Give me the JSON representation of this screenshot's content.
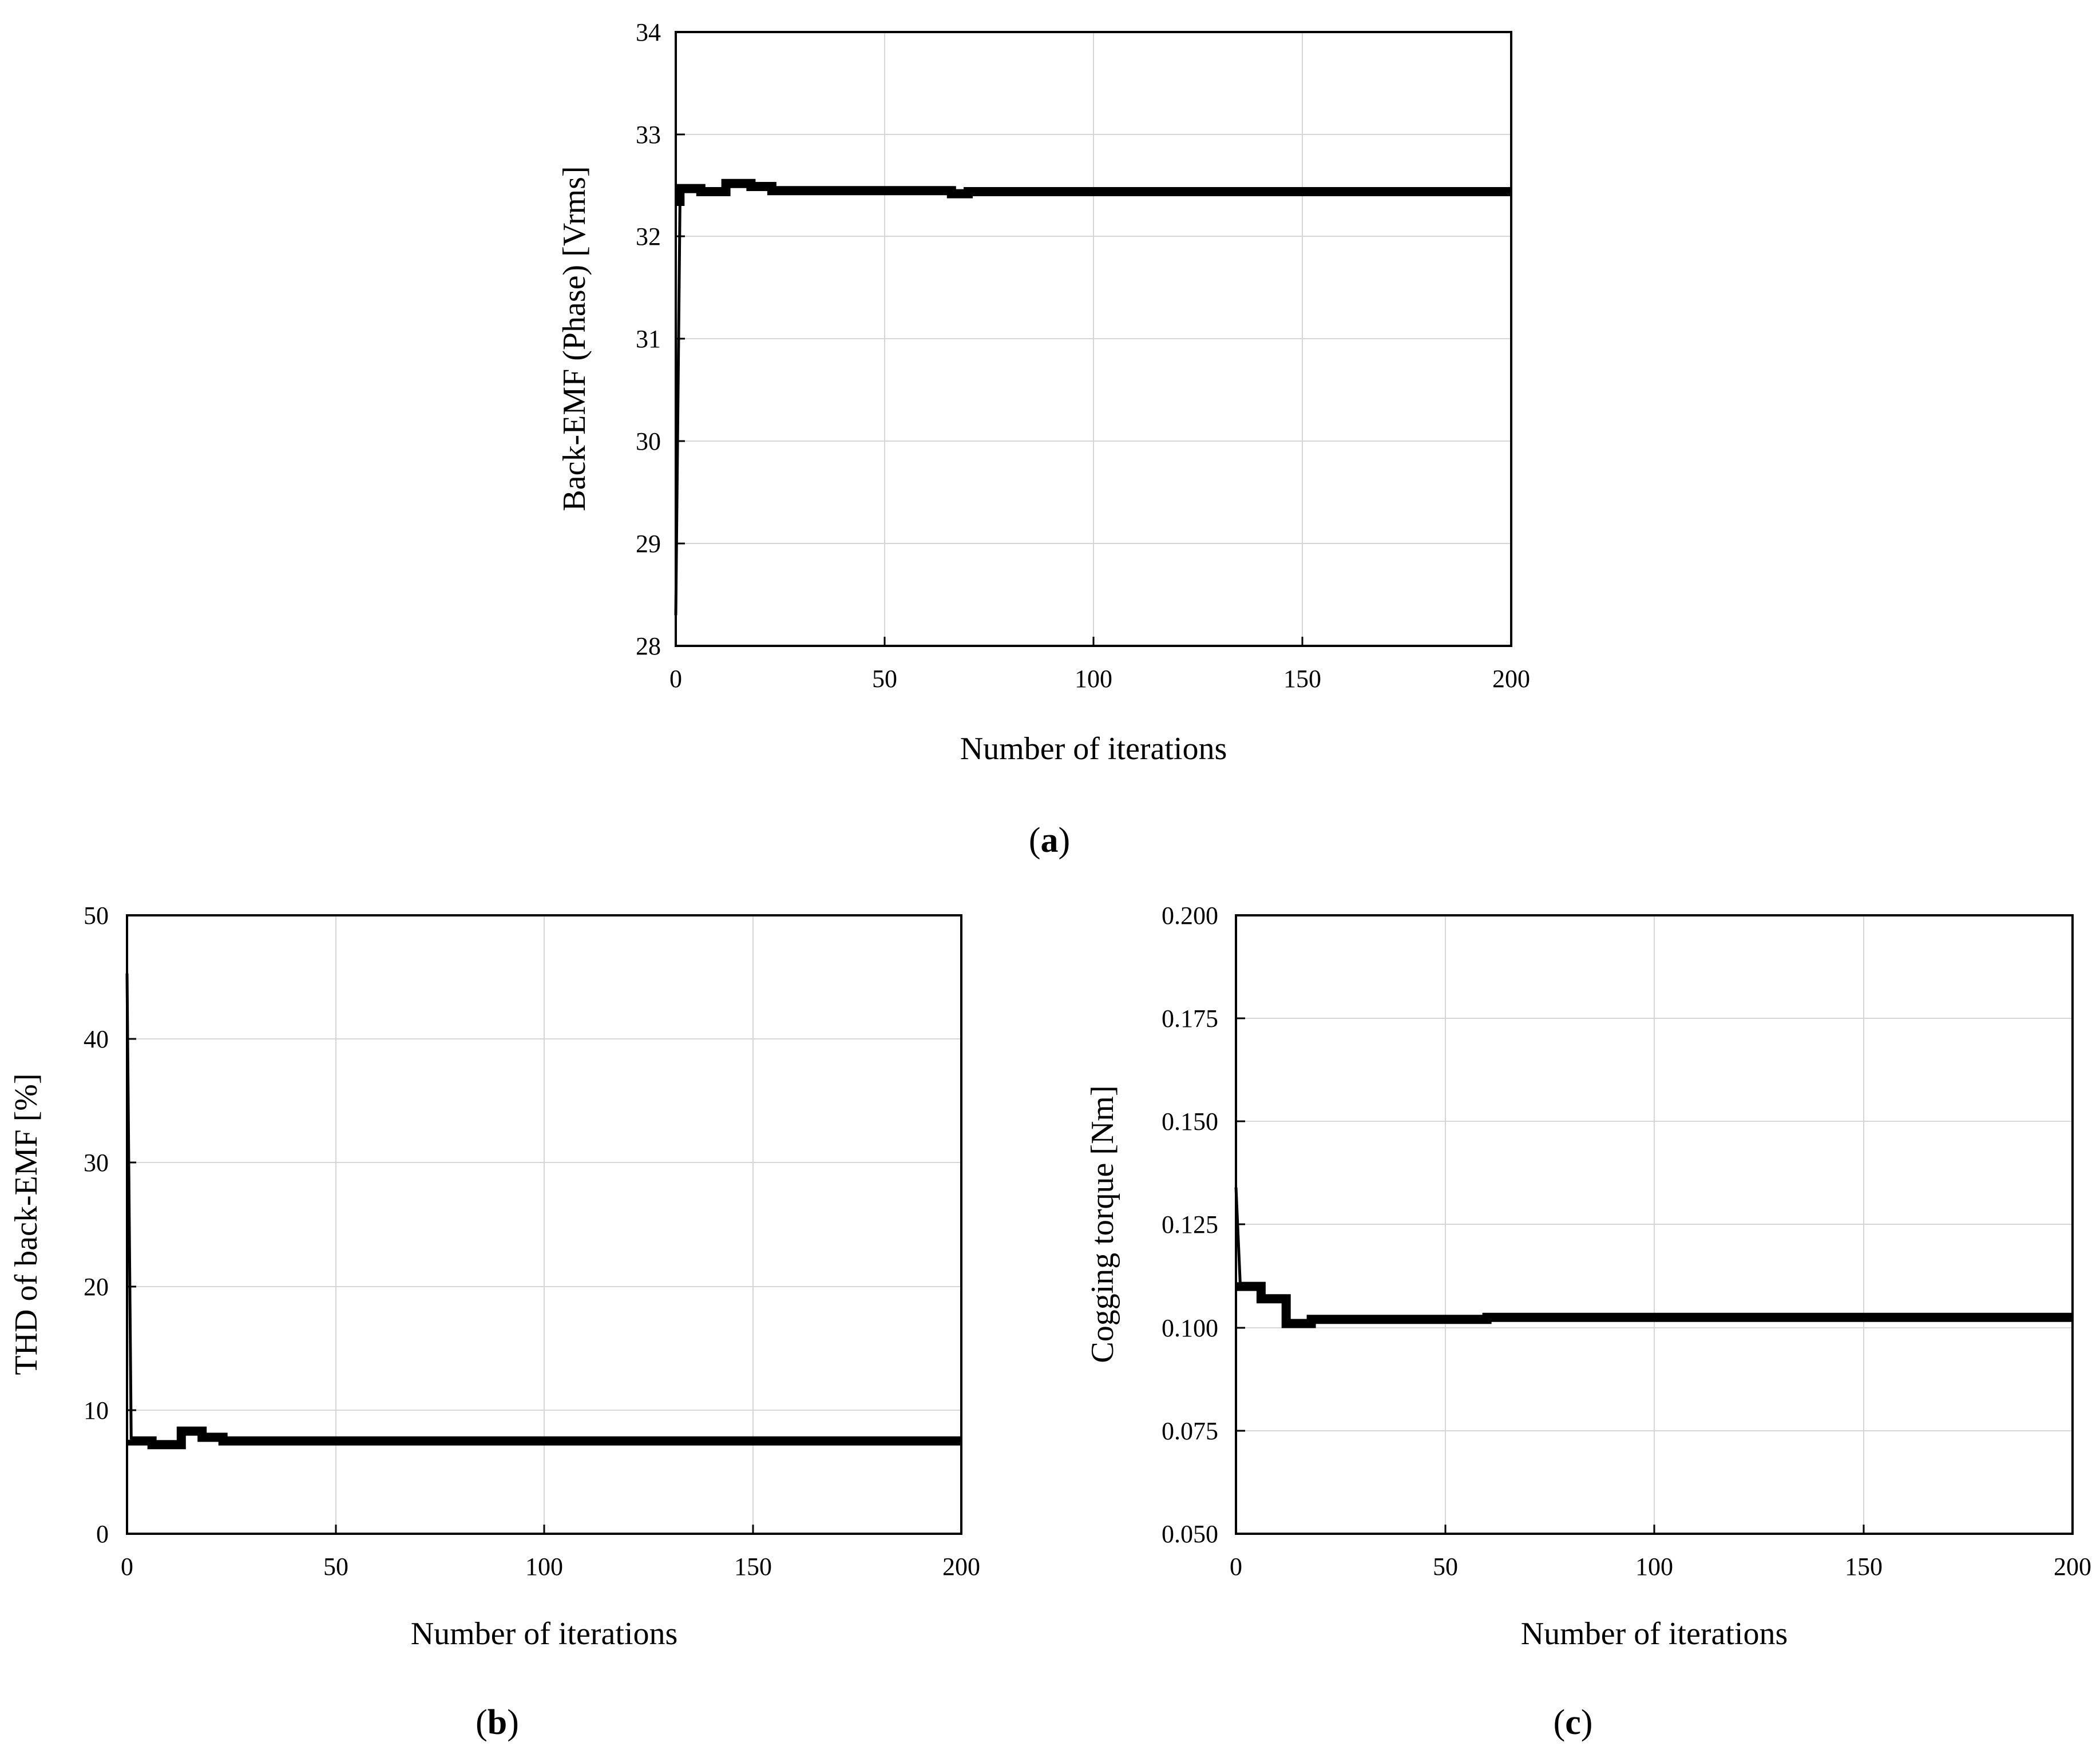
{
  "chart_data": [
    {
      "id": "a",
      "type": "line",
      "caption_letter": "a",
      "xlabel": "Number of iterations",
      "ylabel": "Back-EMF (Phase) [Vrms]",
      "xlim": [
        0,
        200
      ],
      "ylim": [
        28,
        34
      ],
      "xticks": [
        0,
        50,
        100,
        150,
        200
      ],
      "xtick_labels": [
        "0",
        "50",
        "100",
        "150",
        "200"
      ],
      "yticks": [
        28,
        29,
        30,
        31,
        32,
        33,
        34
      ],
      "ytick_labels": [
        "28",
        "29",
        "30",
        "31",
        "32",
        "33",
        "34"
      ],
      "grid": true,
      "series": [
        {
          "name": "Back-EMF",
          "x": [
            0,
            1,
            1,
            6,
            6,
            12,
            12,
            18,
            18,
            23,
            23,
            66,
            66,
            70,
            70,
            200
          ],
          "y": [
            28.3,
            32.3,
            32.47,
            32.47,
            32.44,
            32.44,
            32.52,
            32.52,
            32.49,
            32.49,
            32.45,
            32.45,
            32.42,
            32.42,
            32.44,
            32.44
          ]
        }
      ]
    },
    {
      "id": "b",
      "type": "line",
      "caption_letter": "b",
      "xlabel": "Number of iterations",
      "ylabel": "THD of back-EMF [%]",
      "xlim": [
        0,
        200
      ],
      "ylim": [
        0,
        50
      ],
      "xticks": [
        0,
        50,
        100,
        150,
        200
      ],
      "xtick_labels": [
        "0",
        "50",
        "100",
        "150",
        "200"
      ],
      "yticks": [
        0,
        10,
        20,
        30,
        40,
        50
      ],
      "ytick_labels": [
        "0",
        "10",
        "20",
        "30",
        "40",
        "50"
      ],
      "grid": true,
      "series": [
        {
          "name": "THD",
          "x": [
            0,
            1,
            1,
            6,
            6,
            13,
            13,
            18,
            18,
            23,
            23,
            200
          ],
          "y": [
            45.3,
            7.6,
            7.5,
            7.5,
            7.2,
            7.2,
            8.3,
            8.3,
            7.8,
            7.8,
            7.5,
            7.5
          ]
        }
      ]
    },
    {
      "id": "c",
      "type": "line",
      "caption_letter": "c",
      "xlabel": "Number of iterations",
      "ylabel": "Cogging torque [Nm]",
      "xlim": [
        0,
        200
      ],
      "ylim": [
        0.05,
        0.2
      ],
      "xticks": [
        0,
        50,
        100,
        150,
        200
      ],
      "xtick_labels": [
        "0",
        "50",
        "100",
        "150",
        "200"
      ],
      "yticks": [
        0.05,
        0.075,
        0.1,
        0.125,
        0.15,
        0.175,
        0.2
      ],
      "ytick_labels": [
        "0.050",
        "0.075",
        "0.100",
        "0.125",
        "0.150",
        "0.175",
        "0.200"
      ],
      "grid": true,
      "series": [
        {
          "name": "Cogging torque",
          "x": [
            0,
            1,
            1,
            6,
            6,
            12,
            12,
            18,
            18,
            60,
            60,
            200
          ],
          "y": [
            0.134,
            0.111,
            0.11,
            0.11,
            0.107,
            0.107,
            0.101,
            0.101,
            0.102,
            0.102,
            0.1025,
            0.1025
          ]
        }
      ]
    }
  ]
}
